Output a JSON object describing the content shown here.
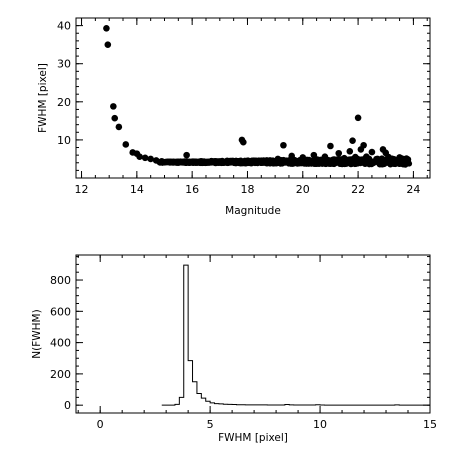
{
  "chart_data": [
    {
      "type": "scatter",
      "xlabel": "Magnitude",
      "ylabel": "FWHM [pixel]",
      "xlim": [
        11.8,
        24.6
      ],
      "ylim": [
        0,
        42
      ],
      "xticks": [
        12,
        14,
        16,
        18,
        20,
        22,
        24
      ],
      "yticks": [
        10,
        20,
        30,
        40
      ],
      "x_minor_step": 0.5,
      "y_minor_step": 2,
      "grid": false,
      "marker": "filled-circle",
      "color": "#000000",
      "points": [
        {
          "x": 12.9,
          "y": 39.3
        },
        {
          "x": 12.95,
          "y": 35.0
        },
        {
          "x": 13.15,
          "y": 18.8
        },
        {
          "x": 13.2,
          "y": 15.7
        },
        {
          "x": 13.35,
          "y": 13.4
        },
        {
          "x": 13.6,
          "y": 8.8
        },
        {
          "x": 13.85,
          "y": 6.7
        },
        {
          "x": 14.0,
          "y": 6.4
        },
        {
          "x": 14.1,
          "y": 5.6
        },
        {
          "x": 14.3,
          "y": 5.3
        },
        {
          "x": 14.5,
          "y": 5.0
        },
        {
          "x": 14.7,
          "y": 4.6
        },
        {
          "x": 14.9,
          "y": 4.4
        },
        {
          "x": 15.1,
          "y": 4.2
        },
        {
          "x": 15.3,
          "y": 4.1
        },
        {
          "x": 15.5,
          "y": 4.2
        },
        {
          "x": 15.8,
          "y": 6.0
        },
        {
          "x": 15.9,
          "y": 4.0
        },
        {
          "x": 16.1,
          "y": 4.3
        },
        {
          "x": 16.3,
          "y": 4.0
        },
        {
          "x": 16.5,
          "y": 4.2
        },
        {
          "x": 16.7,
          "y": 4.1
        },
        {
          "x": 16.9,
          "y": 4.3
        },
        {
          "x": 17.1,
          "y": 4.0
        },
        {
          "x": 17.3,
          "y": 4.2
        },
        {
          "x": 17.5,
          "y": 4.4
        },
        {
          "x": 17.8,
          "y": 10.0
        },
        {
          "x": 17.85,
          "y": 9.4
        },
        {
          "x": 17.9,
          "y": 4.3
        },
        {
          "x": 18.1,
          "y": 4.1
        },
        {
          "x": 18.3,
          "y": 4.5
        },
        {
          "x": 18.5,
          "y": 4.0
        },
        {
          "x": 18.7,
          "y": 4.6
        },
        {
          "x": 18.9,
          "y": 4.2
        },
        {
          "x": 19.1,
          "y": 5.0
        },
        {
          "x": 19.3,
          "y": 8.6
        },
        {
          "x": 19.4,
          "y": 4.3
        },
        {
          "x": 19.6,
          "y": 5.8
        },
        {
          "x": 19.8,
          "y": 4.4
        },
        {
          "x": 20.0,
          "y": 5.4
        },
        {
          "x": 20.2,
          "y": 4.6
        },
        {
          "x": 20.4,
          "y": 6.0
        },
        {
          "x": 20.6,
          "y": 4.5
        },
        {
          "x": 20.8,
          "y": 5.6
        },
        {
          "x": 21.0,
          "y": 8.4
        },
        {
          "x": 21.1,
          "y": 4.8
        },
        {
          "x": 21.3,
          "y": 6.5
        },
        {
          "x": 21.5,
          "y": 5.2
        },
        {
          "x": 21.7,
          "y": 7.0
        },
        {
          "x": 21.8,
          "y": 9.8
        },
        {
          "x": 21.9,
          "y": 5.5
        },
        {
          "x": 22.0,
          "y": 15.8
        },
        {
          "x": 22.1,
          "y": 7.5
        },
        {
          "x": 22.2,
          "y": 8.6
        },
        {
          "x": 22.3,
          "y": 5.6
        },
        {
          "x": 22.5,
          "y": 6.8
        },
        {
          "x": 22.7,
          "y": 5.0
        },
        {
          "x": 22.9,
          "y": 7.5
        },
        {
          "x": 23.0,
          "y": 6.6
        },
        {
          "x": 23.1,
          "y": 5.5
        },
        {
          "x": 23.3,
          "y": 4.9
        },
        {
          "x": 23.5,
          "y": 5.4
        },
        {
          "x": 23.7,
          "y": 4.6
        },
        {
          "x": 23.8,
          "y": 4.2
        }
      ],
      "dense_band": {
        "x_start": 14.8,
        "x_end": 23.85,
        "y_center": 4.1,
        "y_spread_start": 0.3,
        "y_spread_end": 1.8,
        "count": 900
      }
    },
    {
      "type": "histogram",
      "xlabel": "FWHM [pixel]",
      "ylabel": "N(FWHM)",
      "xlim": [
        -1.1,
        15
      ],
      "ylim": [
        -50,
        960
      ],
      "xticks": [
        0,
        5,
        10,
        15
      ],
      "yticks": [
        0,
        200,
        400,
        600,
        800
      ],
      "x_minor_step": 1,
      "y_minor_step": 50,
      "grid": false,
      "bin_width": 0.2,
      "bins": [
        {
          "x": 2.8,
          "count": 0
        },
        {
          "x": 3.0,
          "count": 0
        },
        {
          "x": 3.2,
          "count": 0
        },
        {
          "x": 3.4,
          "count": 5
        },
        {
          "x": 3.6,
          "count": 50
        },
        {
          "x": 3.8,
          "count": 895
        },
        {
          "x": 4.0,
          "count": 285
        },
        {
          "x": 4.2,
          "count": 150
        },
        {
          "x": 4.4,
          "count": 75
        },
        {
          "x": 4.6,
          "count": 45
        },
        {
          "x": 4.8,
          "count": 25
        },
        {
          "x": 5.0,
          "count": 15
        },
        {
          "x": 5.2,
          "count": 10
        },
        {
          "x": 5.4,
          "count": 8
        },
        {
          "x": 5.6,
          "count": 6
        },
        {
          "x": 5.8,
          "count": 5
        },
        {
          "x": 6.0,
          "count": 4
        },
        {
          "x": 6.2,
          "count": 3
        },
        {
          "x": 6.4,
          "count": 3
        },
        {
          "x": 6.6,
          "count": 2
        },
        {
          "x": 6.8,
          "count": 2
        },
        {
          "x": 7.0,
          "count": 2
        },
        {
          "x": 7.2,
          "count": 2
        },
        {
          "x": 7.4,
          "count": 2
        },
        {
          "x": 7.6,
          "count": 1
        },
        {
          "x": 7.8,
          "count": 1
        },
        {
          "x": 8.0,
          "count": 1
        },
        {
          "x": 8.2,
          "count": 1
        },
        {
          "x": 8.4,
          "count": 4
        },
        {
          "x": 8.6,
          "count": 2
        },
        {
          "x": 8.8,
          "count": 1
        },
        {
          "x": 9.0,
          "count": 1
        },
        {
          "x": 9.2,
          "count": 1
        },
        {
          "x": 9.4,
          "count": 1
        },
        {
          "x": 9.6,
          "count": 1
        },
        {
          "x": 9.8,
          "count": 3
        },
        {
          "x": 10.0,
          "count": 1
        },
        {
          "x": 10.2,
          "count": 0
        },
        {
          "x": 10.4,
          "count": 0
        },
        {
          "x": 10.6,
          "count": 0
        },
        {
          "x": 10.8,
          "count": 0
        },
        {
          "x": 11.0,
          "count": 0
        },
        {
          "x": 11.2,
          "count": 0
        },
        {
          "x": 11.4,
          "count": 0
        },
        {
          "x": 11.6,
          "count": 0
        },
        {
          "x": 11.8,
          "count": 0
        },
        {
          "x": 12.0,
          "count": 0
        },
        {
          "x": 12.2,
          "count": 0
        },
        {
          "x": 12.4,
          "count": 0
        },
        {
          "x": 12.6,
          "count": 0
        },
        {
          "x": 12.8,
          "count": 0
        },
        {
          "x": 13.0,
          "count": 0
        },
        {
          "x": 13.2,
          "count": 0
        },
        {
          "x": 13.4,
          "count": 2
        },
        {
          "x": 13.6,
          "count": 0
        },
        {
          "x": 13.8,
          "count": 0
        },
        {
          "x": 14.0,
          "count": 0
        },
        {
          "x": 14.2,
          "count": 0
        },
        {
          "x": 14.4,
          "count": 0
        },
        {
          "x": 14.6,
          "count": 0
        },
        {
          "x": 14.8,
          "count": 0
        }
      ]
    }
  ]
}
